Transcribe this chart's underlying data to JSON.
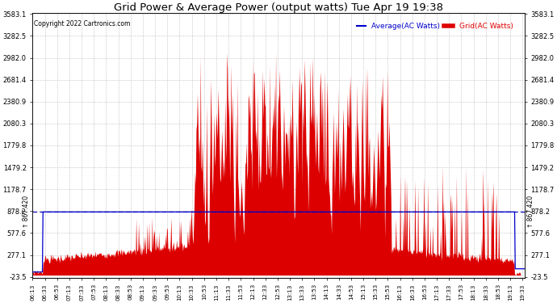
{
  "title": "Grid Power & Average Power (output watts) Tue Apr 19 19:38",
  "copyright": "Copyright 2022 Cartronics.com",
  "legend_avg": "Average(AC Watts)",
  "legend_grid": "Grid(AC Watts)",
  "yticks": [
    3583.1,
    3282.5,
    2982.0,
    2681.4,
    2380.9,
    2080.3,
    1779.8,
    1479.2,
    1178.7,
    878.2,
    577.6,
    277.1,
    -23.5
  ],
  "hline_value": 867.42,
  "hline_label": "867.420",
  "ymin": -23.5,
  "ymax": 3583.1,
  "bg_color": "#ffffff",
  "plot_bg_color": "#ffffff",
  "grid_color": "#aaaaaa",
  "fill_color": "#dd0000",
  "avg_line_color": "#0000cc",
  "hline_color": "#0000bb",
  "title_color": "#000000",
  "copyright_color": "#000000",
  "legend_avg_color": "#0000cc",
  "legend_grid_color": "#dd0000"
}
